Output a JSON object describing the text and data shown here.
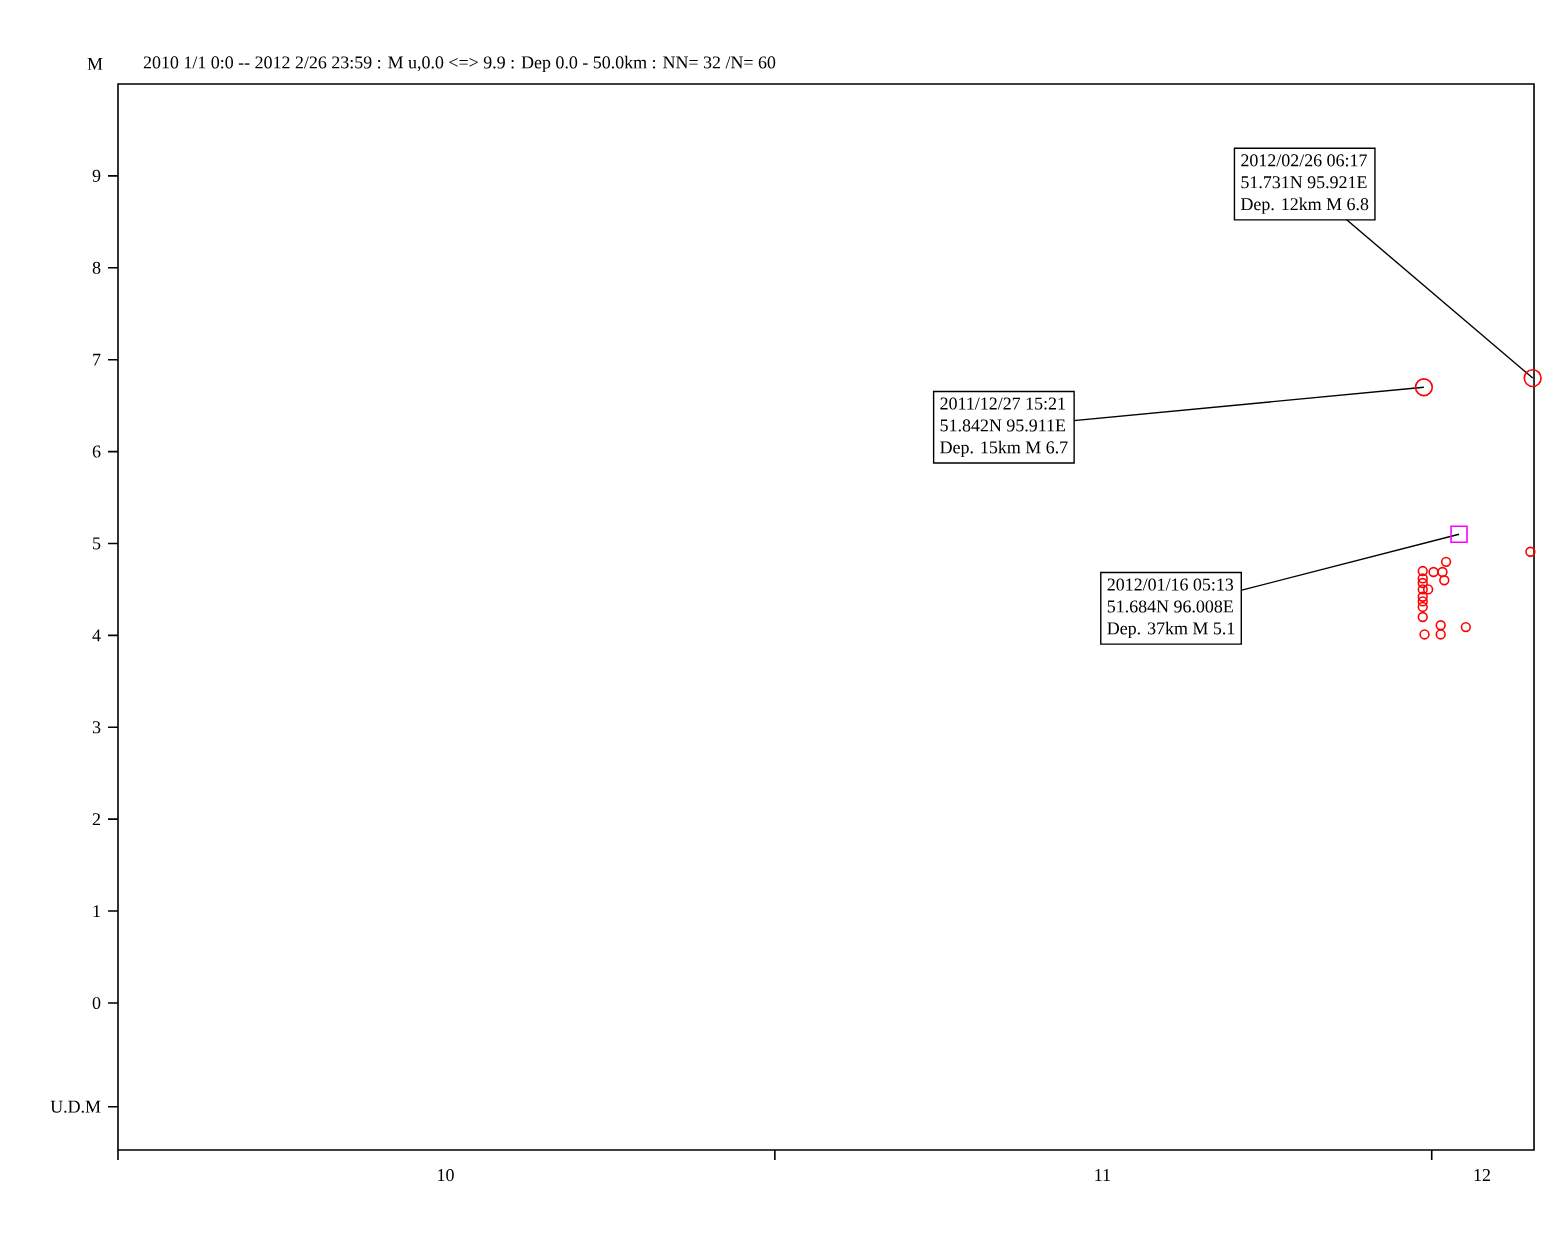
{
  "chart_data": {
    "type": "scatter",
    "title": "2010 1/1 0:0 -- 2012 2/26 23:59  : M u,0.0 <=> 9.9   :  Dep 0.0 - 50.0km :  NN= 32 /N= 60",
    "ylabel": "M",
    "xlim": [
      "2010-01-01",
      "2012-02-26T23:59"
    ],
    "xticks": [
      {
        "value": "2010-01-01",
        "label": null
      },
      {
        "value": "2011-01-01",
        "label": null
      },
      {
        "value": "2012-01-01",
        "label": null
      },
      {
        "value": "2010-07-02",
        "label": "10"
      },
      {
        "value": "2011-07-02",
        "label": "11"
      },
      {
        "value": "2012-01-29",
        "label": "12"
      }
    ],
    "ylim": [
      -1.6,
      10
    ],
    "yticks": [
      {
        "value": -1.13,
        "label": "U.D.M"
      },
      0,
      1,
      2,
      3,
      4,
      5,
      6,
      7,
      8,
      9
    ],
    "marker": "circle",
    "series": [
      {
        "color": "#ff0000",
        "x": [
          "2011-12-27",
          "2011-12-27",
          "2011-12-27",
          "2011-12-27",
          "2011-12-27",
          "2011-12-27",
          "2011-12-27",
          "2011-12-27",
          "2011-12-28",
          "2011-12-30",
          "2012-01-02",
          "2012-01-07",
          "2012-01-08",
          "2012-01-09",
          "2012-01-06",
          "2012-01-06",
          "2012-01-20",
          "2012-02-25"
        ],
        "values": [
          4.7,
          4.62,
          4.57,
          4.5,
          4.42,
          4.37,
          4.31,
          4.2,
          4.01,
          4.5,
          4.69,
          4.69,
          4.6,
          4.8,
          4.11,
          4.01,
          4.09,
          4.91
        ]
      },
      {
        "color": "#ff0000",
        "x": [
          "2011-12-27T15:21",
          "2012-02-26T06:17"
        ],
        "values": [
          6.7,
          6.8
        ]
      },
      {
        "color": "#ff00ff",
        "marker": "square",
        "x": [
          "2012-01-16T05:13"
        ],
        "values": [
          5.1
        ]
      }
    ],
    "annotations": [
      {
        "text": "2012/02/26 06:17",
        "x": "2012-02-26T06:17",
        "y": 6.8
      },
      "51.731N  95.921E",
      "Dep. 12km   M 6.8",
      {
        "text": "2011/12/27 15:21",
        "x": "2011-12-27T15:21",
        "y": 6.7
      },
      "51.842N  95.911E",
      "Dep. 15km   M 6.7",
      {
        "text": "2012/01/16 05:13",
        "x": "2012-01-16T05:13",
        "y": 5.1
      },
      "51.684N  96.008E",
      "Dep. 37km   M 5.1"
    ]
  }
}
